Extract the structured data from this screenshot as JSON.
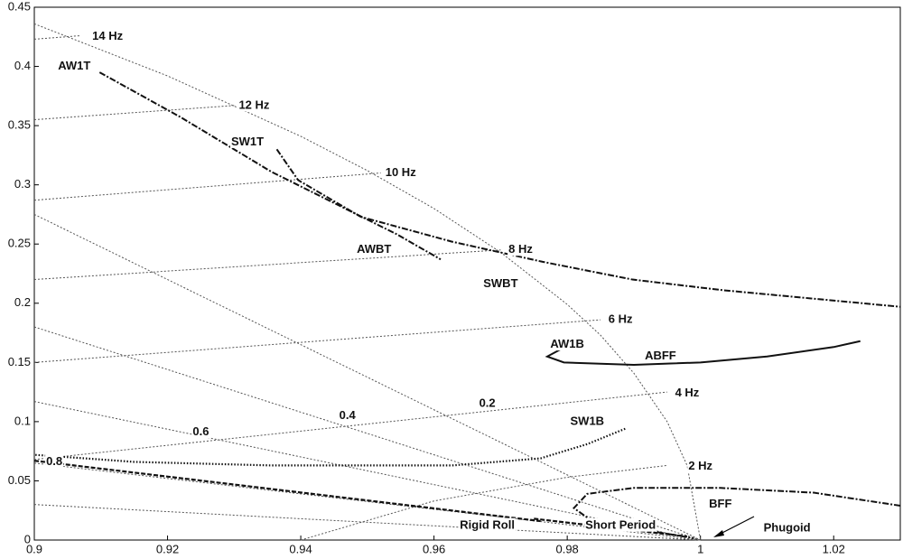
{
  "chart_data": {
    "type": "line",
    "xlim": [
      0.9,
      1.03
    ],
    "ylim": [
      0,
      0.45
    ],
    "xticks": [
      0.9,
      0.92,
      0.94,
      0.96,
      0.98,
      1,
      1.02
    ],
    "yticks": [
      0,
      0.05,
      0.1,
      0.15,
      0.2,
      0.25,
      0.3,
      0.35,
      0.4,
      0.45
    ],
    "series": [
      {
        "color": "#555",
        "style": "dotted",
        "x": [
          0.9,
          0.92,
          0.94,
          0.95,
          0.96,
          0.97,
          0.98,
          0.985,
          0.99,
          0.995,
          0.998,
          1
        ],
        "values": [
          0.436,
          0.392,
          0.341,
          0.312,
          0.28,
          0.243,
          0.199,
          0.173,
          0.141,
          0.1,
          0.063,
          0
        ]
      },
      {
        "color": "#555",
        "style": "dotted",
        "x": [
          0.9,
          0.907
        ],
        "values": [
          0.423,
          0.426
        ]
      },
      {
        "color": "#555",
        "style": "dotted",
        "x": [
          0.9,
          0.93
        ],
        "values": [
          0.355,
          0.367
        ]
      },
      {
        "color": "#555",
        "style": "dotted",
        "x": [
          0.9,
          0.952
        ],
        "values": [
          0.287,
          0.31
        ]
      },
      {
        "color": "#555",
        "style": "dotted",
        "x": [
          0.9,
          0.97
        ],
        "values": [
          0.22,
          0.245
        ]
      },
      {
        "color": "#555",
        "style": "dotted",
        "x": [
          0.9,
          0.985
        ],
        "values": [
          0.15,
          0.186
        ]
      },
      {
        "color": "#555",
        "style": "dotted",
        "x": [
          0.9,
          0.995
        ],
        "values": [
          0.068,
          0.125
        ]
      },
      {
        "color": "#555",
        "style": "dotted",
        "x": [
          0.94,
          0.96,
          0.98,
          0.995
        ],
        "values": [
          0.0,
          0.033,
          0.053,
          0.063
        ]
      },
      {
        "color": "#555",
        "style": "dotted",
        "x": [
          0.9,
          1
        ],
        "values": [
          0.275,
          0
        ]
      },
      {
        "color": "#555",
        "style": "dotted",
        "x": [
          0.9,
          1
        ],
        "values": [
          0.18,
          0
        ]
      },
      {
        "color": "#555",
        "style": "dotted",
        "x": [
          0.9,
          1
        ],
        "values": [
          0.117,
          0
        ]
      },
      {
        "color": "#555",
        "style": "dotted",
        "x": [
          0.9,
          1
        ],
        "values": [
          0.065,
          0
        ]
      },
      {
        "color": "#555",
        "style": "dotted",
        "x": [
          0.9,
          1
        ],
        "values": [
          0.03,
          0
        ]
      },
      {
        "color": "#111",
        "style": "dashdot",
        "x": [
          0.9098,
          0.922,
          0.9356,
          0.9545,
          0.961
        ],
        "values": [
          0.395,
          0.357,
          0.311,
          0.258,
          0.237
        ]
      },
      {
        "color": "#111",
        "style": "dashdot",
        "x": [
          0.9364,
          0.9396,
          0.949,
          0.9627,
          0.9763,
          0.9898,
          1.0034,
          1.03
        ],
        "values": [
          0.33,
          0.304,
          0.273,
          0.252,
          0.235,
          0.22,
          0.211,
          0.197
        ]
      },
      {
        "color": "#111",
        "style": "solid",
        "x": [
          0.979,
          0.977,
          0.9795,
          0.99,
          1.0,
          1.01,
          1.02,
          1.024
        ],
        "values": [
          0.161,
          0.155,
          0.15,
          0.148,
          0.15,
          0.155,
          0.163,
          0.168
        ]
      },
      {
        "color": "#111",
        "style": "dotthick",
        "x": [
          0.9887,
          0.983,
          0.976,
          0.9627,
          0.9356,
          0.915,
          0.9
        ],
        "values": [
          0.094,
          0.081,
          0.069,
          0.063,
          0.063,
          0.066,
          0.072
        ]
      },
      {
        "color": "#111",
        "style": "dashdot",
        "x": [
          1.03,
          1.017,
          1.003,
          0.99,
          0.983,
          0.981,
          0.984,
          0.99,
          0.999
        ],
        "values": [
          0.029,
          0.04,
          0.044,
          0.044,
          0.039,
          0.027,
          0.015,
          0.01,
          0.0015
        ]
      },
      {
        "color": "#111",
        "style": "dashed",
        "x": [
          0.9,
          0.976
        ],
        "values": [
          0.067,
          0.016
        ]
      },
      {
        "color": "#111",
        "style": "dashed",
        "x": [
          0.975,
          0.998
        ],
        "values": [
          0.018,
          0.003
        ]
      }
    ],
    "annotations": [
      {
        "text": "14 Hz",
        "x": 0.911,
        "y": 0.425
      },
      {
        "text": "12 Hz",
        "x": 0.933,
        "y": 0.367
      },
      {
        "text": "10 Hz",
        "x": 0.955,
        "y": 0.31
      },
      {
        "text": "8 Hz",
        "x": 0.973,
        "y": 0.245
      },
      {
        "text": "6 Hz",
        "x": 0.988,
        "y": 0.186
      },
      {
        "text": "4 Hz",
        "x": 0.998,
        "y": 0.124
      },
      {
        "text": "2 Hz",
        "x": 1.0,
        "y": 0.062
      },
      {
        "text": "AW1T",
        "x": 0.906,
        "y": 0.4
      },
      {
        "text": "SW1T",
        "x": 0.932,
        "y": 0.336
      },
      {
        "text": "AWBT",
        "x": 0.951,
        "y": 0.245
      },
      {
        "text": "SWBT",
        "x": 0.97,
        "y": 0.216
      },
      {
        "text": "AW1B",
        "x": 0.98,
        "y": 0.165
      },
      {
        "text": "ABFF",
        "x": 0.994,
        "y": 0.155
      },
      {
        "text": "SW1B",
        "x": 0.983,
        "y": 0.1
      },
      {
        "text": "BFF",
        "x": 1.003,
        "y": 0.03
      },
      {
        "text": "Phugoid",
        "x": 1.013,
        "y": 0.01
      },
      {
        "text": "Short Period",
        "x": 0.988,
        "y": 0.012
      },
      {
        "text": "Rigid Roll",
        "x": 0.968,
        "y": 0.012
      },
      {
        "text": "0.2",
        "x": 0.968,
        "y": 0.115
      },
      {
        "text": "0.4",
        "x": 0.947,
        "y": 0.105
      },
      {
        "text": "0.6",
        "x": 0.925,
        "y": 0.091
      },
      {
        "text": "0.8",
        "x": 0.903,
        "y": 0.066
      }
    ]
  }
}
